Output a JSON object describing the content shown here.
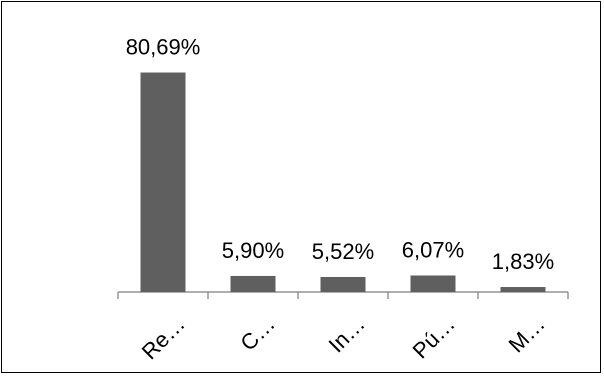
{
  "chart_data": {
    "type": "bar",
    "categories": [
      "Re…",
      "C…",
      "In…",
      "Pú…",
      "M…"
    ],
    "values": [
      80.69,
      5.9,
      5.52,
      6.07,
      1.83
    ],
    "data_labels": [
      "80,69%",
      "5,90%",
      "5,52%",
      "6,07%",
      "1,83%"
    ],
    "ylim": [
      0,
      100
    ],
    "grid": false,
    "legend": "none",
    "title": "",
    "xlabel": "",
    "ylabel": ""
  },
  "colors": {
    "bar": "#5f5f5f",
    "axis": "#7f7f7f",
    "text": "#000000",
    "border": "#000000"
  }
}
